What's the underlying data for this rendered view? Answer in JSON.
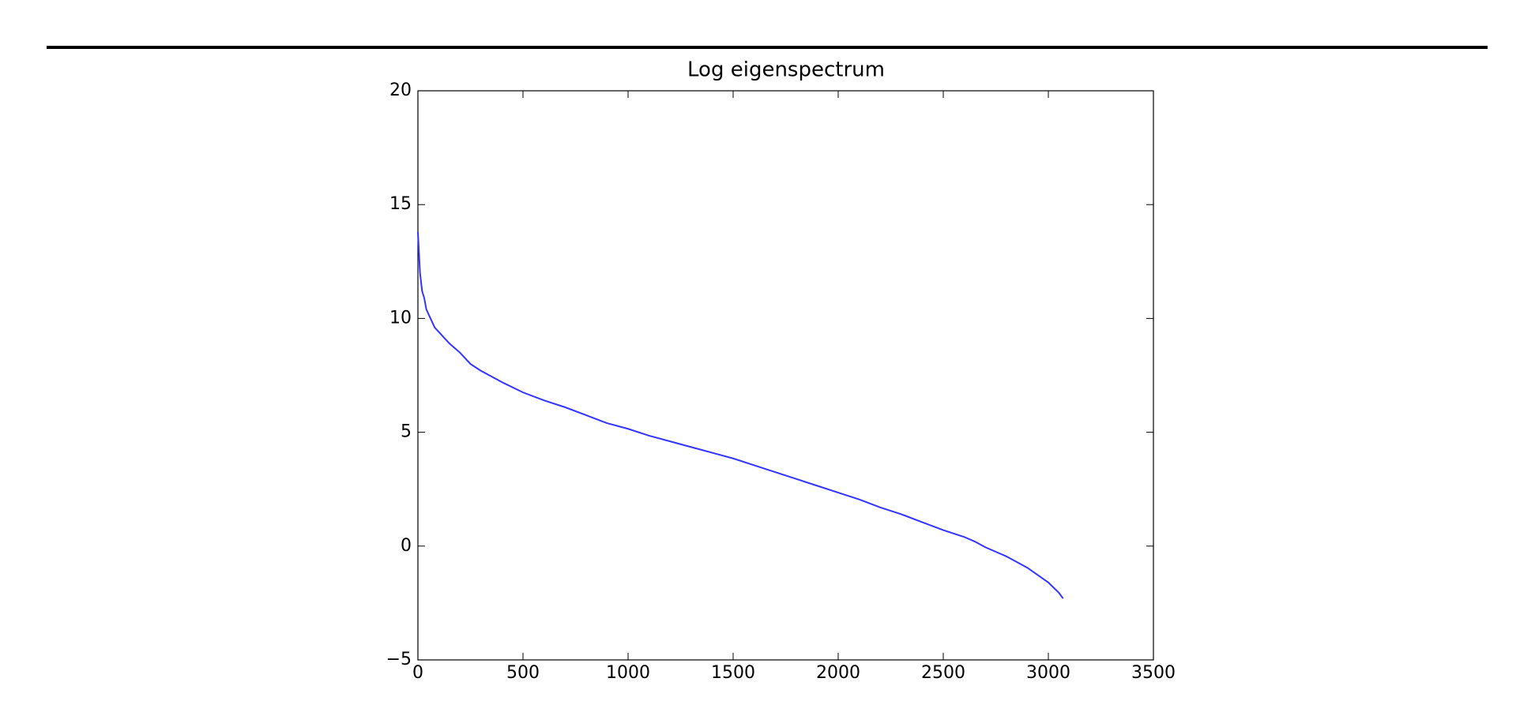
{
  "chart_data": {
    "type": "line",
    "title": "Log eigenspectrum",
    "x": [
      0,
      10,
      20,
      30,
      40,
      60,
      80,
      100,
      150,
      200,
      250,
      300,
      400,
      500,
      600,
      700,
      800,
      900,
      1000,
      1100,
      1200,
      1300,
      1400,
      1500,
      1600,
      1700,
      1800,
      1900,
      2000,
      2100,
      2200,
      2300,
      2400,
      2500,
      2600,
      2650,
      2700,
      2800,
      2900,
      3000,
      3050,
      3070
    ],
    "series": [
      {
        "color": "#3333ff",
        "values": [
          13.8,
          12.0,
          11.2,
          10.9,
          10.4,
          10.0,
          9.6,
          9.4,
          8.9,
          8.5,
          8.0,
          7.7,
          7.2,
          6.75,
          6.4,
          6.1,
          5.75,
          5.4,
          5.15,
          4.85,
          4.6,
          4.35,
          4.1,
          3.85,
          3.55,
          3.25,
          2.95,
          2.65,
          2.35,
          2.05,
          1.7,
          1.4,
          1.05,
          0.7,
          0.4,
          0.2,
          -0.05,
          -0.45,
          -0.95,
          -1.6,
          -2.05,
          -2.3
        ]
      }
    ],
    "xlim": [
      0,
      3500
    ],
    "xticks": [
      0,
      500,
      1000,
      1500,
      2000,
      2500,
      3000,
      3500
    ],
    "ylim": [
      -5,
      20
    ],
    "yticks": [
      {
        "value": -5,
        "label": "−5"
      },
      0,
      5,
      10,
      15,
      20
    ],
    "grid": false
  }
}
